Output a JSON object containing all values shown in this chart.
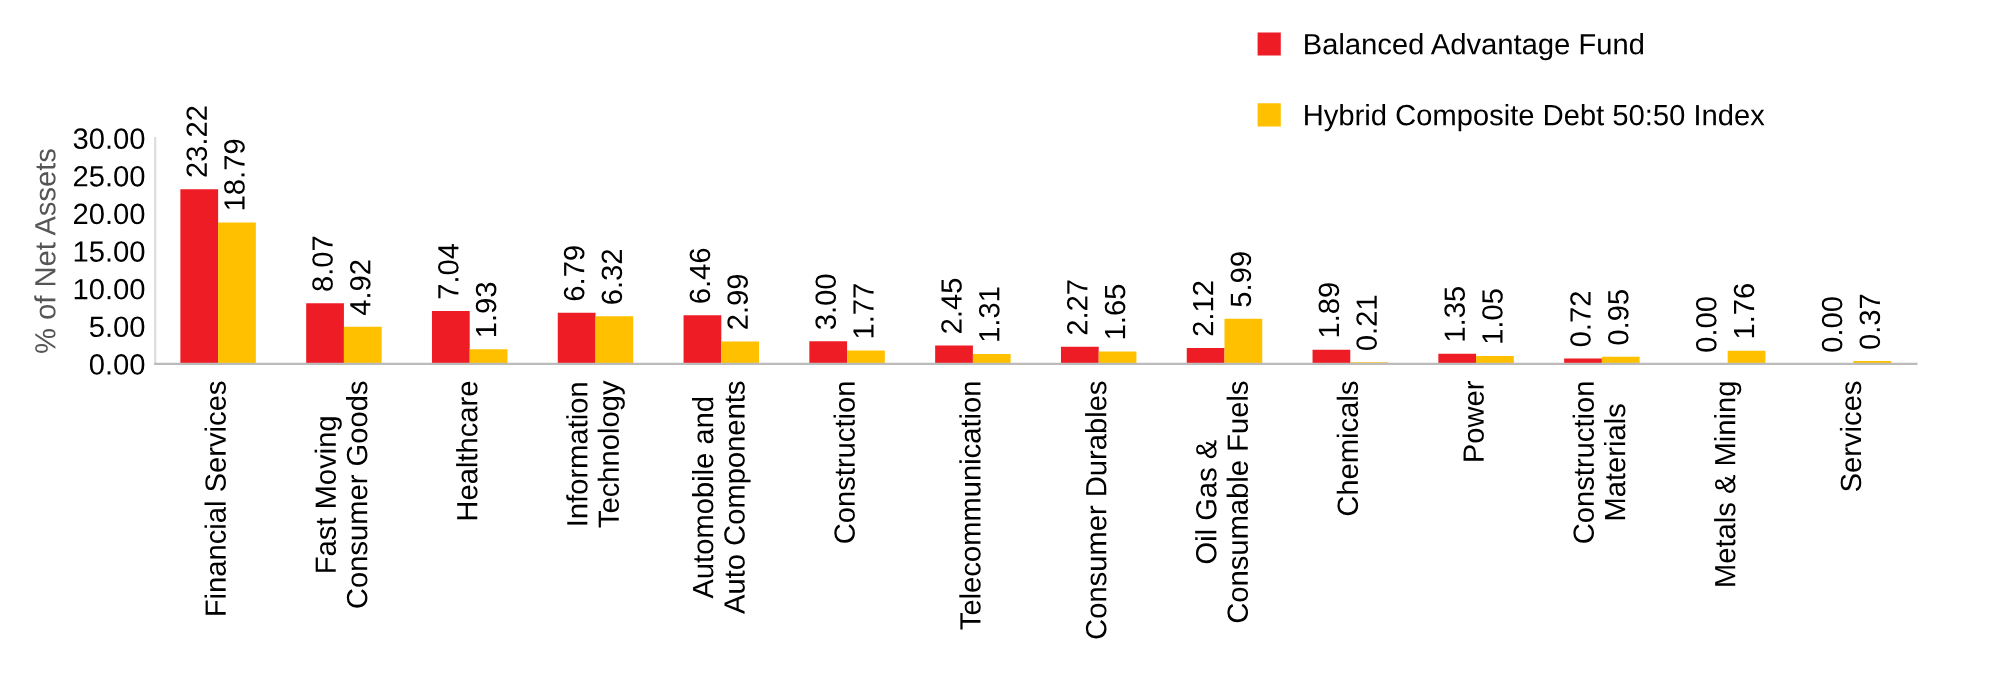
{
  "chart_data": {
    "type": "bar",
    "ylabel": "% of Net Assets",
    "categories": [
      "Financial Services",
      "Fast Moving\nConsumer Goods",
      "Healthcare",
      "Information\nTechnology",
      "Automobile and\nAuto Components",
      "Construction",
      "Telecommunication",
      "Consumer Durables",
      "Oil Gas &\nConsumable Fuels",
      "Chemicals",
      "Power",
      "Construction\nMaterials",
      "Metals & Mining",
      "Services"
    ],
    "series": [
      {
        "name": "Balanced Advantage Fund",
        "color": "#ee1c25",
        "values": [
          23.22,
          8.07,
          7.04,
          6.79,
          6.46,
          3.0,
          2.45,
          2.27,
          2.12,
          1.89,
          1.35,
          0.72,
          0.0,
          0.0
        ],
        "value_labels": [
          "23.22",
          "8.07",
          "7.04",
          "6.79",
          "6.46",
          "3.00",
          "2.45",
          "2.27",
          "2.12",
          "1.89",
          "1.35",
          "0.72",
          "0.00",
          "0.00"
        ]
      },
      {
        "name": "Hybrid Composite Debt 50:50 Index",
        "color": "#ffc000",
        "values": [
          18.79,
          4.92,
          1.93,
          6.32,
          2.99,
          1.77,
          1.31,
          1.65,
          5.99,
          0.21,
          1.05,
          0.95,
          1.76,
          0.37
        ],
        "value_labels": [
          "18.79",
          "4.92",
          "1.93",
          "6.32",
          "2.99",
          "1.77",
          "1.31",
          "1.65",
          "5.99",
          "0.21",
          "1.05",
          "0.95",
          "1.76",
          "0.37"
        ]
      }
    ],
    "ylim": [
      0,
      30
    ],
    "yticks": [
      {
        "value": 0,
        "label": "0.00"
      },
      {
        "value": 5,
        "label": "5.00"
      },
      {
        "value": 10,
        "label": "10.00"
      },
      {
        "value": 15,
        "label": "15.00"
      },
      {
        "value": 20,
        "label": "20.00"
      },
      {
        "value": 25,
        "label": "25.00"
      },
      {
        "value": 30,
        "label": "30.00"
      }
    ],
    "legend": "top right",
    "grid": false
  }
}
